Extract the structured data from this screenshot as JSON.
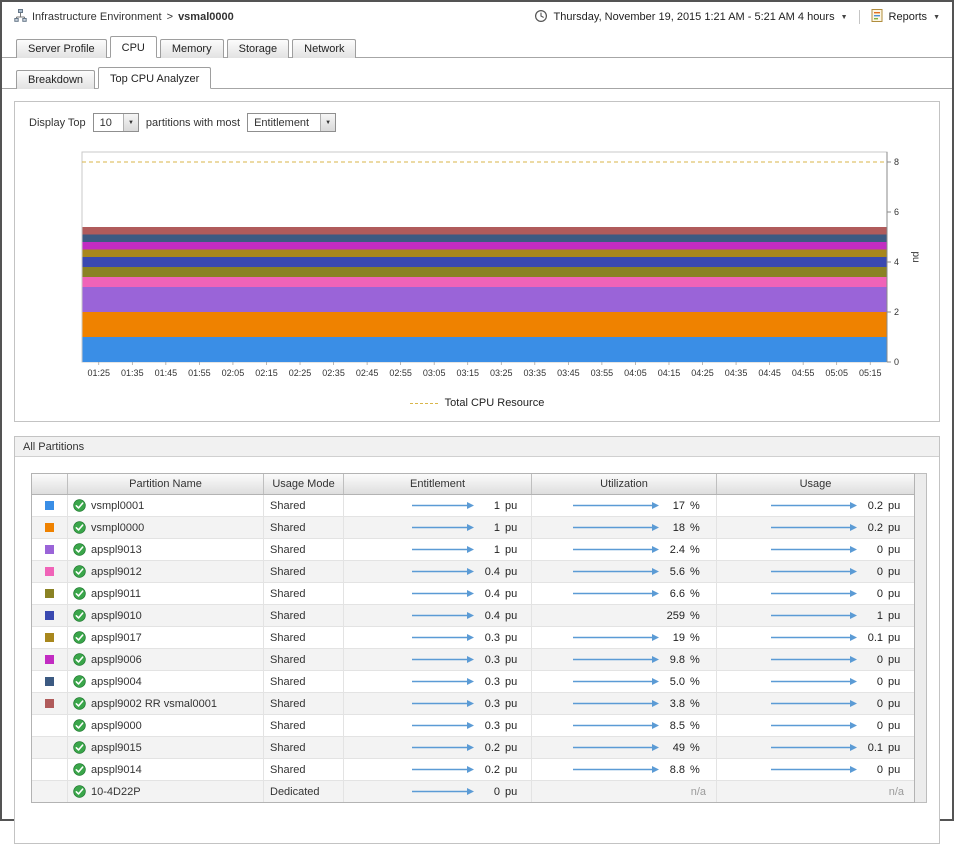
{
  "header": {
    "breadcrumb": {
      "root": "Infrastructure Environment",
      "separator": ">",
      "current": "vsmal0000"
    },
    "time_range": "Thursday, November 19, 2015 1:21 AM - 5:21 AM 4 hours",
    "reports_label": "Reports"
  },
  "glyphs": {
    "caret": "▼"
  },
  "icons": {
    "breadcrumb": "environment-icon",
    "time": "clock-icon",
    "reports": "report-document-icon",
    "dropdown": "chevron-down-icon",
    "status": "status-ok-check-icon",
    "trend": "trend-arrow-sparkline"
  },
  "tabs": {
    "items": [
      "Server Profile",
      "CPU",
      "Memory",
      "Storage",
      "Network"
    ],
    "active": "CPU"
  },
  "subtabs": {
    "items": [
      "Breakdown",
      "Top CPU Analyzer"
    ],
    "active": "Top CPU Analyzer"
  },
  "controls": {
    "display_top_label": "Display Top",
    "top_value": "10",
    "partitions_label": "partitions with most",
    "metric_value": "Entitlement"
  },
  "chart_data": {
    "type": "area",
    "stacked": true,
    "x": [
      "01:25",
      "01:35",
      "01:45",
      "01:55",
      "02:05",
      "02:15",
      "02:25",
      "02:35",
      "02:45",
      "02:55",
      "03:05",
      "03:15",
      "03:25",
      "03:35",
      "03:45",
      "03:55",
      "04:05",
      "04:15",
      "04:25",
      "04:35",
      "04:45",
      "04:55",
      "05:05",
      "05:15"
    ],
    "series": [
      {
        "name": "vsmpl0001",
        "color": "#3a8ee6",
        "value": 1
      },
      {
        "name": "vsmpl0000",
        "color": "#ef8200",
        "value": 1
      },
      {
        "name": "apspl9013",
        "color": "#9a64d8",
        "value": 1
      },
      {
        "name": "apspl9012",
        "color": "#f063b8",
        "value": 0.4
      },
      {
        "name": "apspl9011",
        "color": "#8a8224",
        "value": 0.4
      },
      {
        "name": "apspl9010",
        "color": "#3a49b0",
        "value": 0.4
      },
      {
        "name": "apspl9017",
        "color": "#a8871d",
        "value": 0.3
      },
      {
        "name": "apspl9006",
        "color": "#c22cc2",
        "value": 0.3
      },
      {
        "name": "apspl9004",
        "color": "#3c5a82",
        "value": 0.3
      },
      {
        "name": "apspl9002 RR vsmal0001",
        "color": "#b05b5b",
        "value": 0.3
      }
    ],
    "ylabel": "pu",
    "yticks": [
      0,
      2,
      4,
      6,
      8
    ],
    "ylim": [
      0,
      8.4
    ],
    "grid": false,
    "legend_position": "bottom",
    "total_line": {
      "label": "Total CPU Resource",
      "value": 8,
      "color": "#d9b64a",
      "style": "dashed"
    }
  },
  "partitions_panel": {
    "title": "All Partitions",
    "na_label": "n/a",
    "columns": [
      "",
      "Partition Name",
      "Usage Mode",
      "Entitlement",
      "Utilization",
      "Usage"
    ],
    "rows": [
      {
        "color": "#3a8ee6",
        "status": "ok",
        "name": "vsmpl0001",
        "mode": "Shared",
        "entitlement": {
          "value": "1",
          "unit": "pu"
        },
        "utilization": {
          "value": "17",
          "unit": "%"
        },
        "usage": {
          "value": "0.2",
          "unit": "pu"
        }
      },
      {
        "color": "#ef8200",
        "status": "ok",
        "name": "vsmpl0000",
        "mode": "Shared",
        "entitlement": {
          "value": "1",
          "unit": "pu"
        },
        "utilization": {
          "value": "18",
          "unit": "%"
        },
        "usage": {
          "value": "0.2",
          "unit": "pu"
        }
      },
      {
        "color": "#9a64d8",
        "status": "ok",
        "name": "apspl9013",
        "mode": "Shared",
        "entitlement": {
          "value": "1",
          "unit": "pu"
        },
        "utilization": {
          "value": "2.4",
          "unit": "%"
        },
        "usage": {
          "value": "0",
          "unit": "pu"
        }
      },
      {
        "color": "#f063b8",
        "status": "ok",
        "name": "apspl9012",
        "mode": "Shared",
        "entitlement": {
          "value": "0.4",
          "unit": "pu"
        },
        "utilization": {
          "value": "5.6",
          "unit": "%"
        },
        "usage": {
          "value": "0",
          "unit": "pu"
        }
      },
      {
        "color": "#8a8224",
        "status": "ok",
        "name": "apspl9011",
        "mode": "Shared",
        "entitlement": {
          "value": "0.4",
          "unit": "pu"
        },
        "utilization": {
          "value": "6.6",
          "unit": "%"
        },
        "usage": {
          "value": "0",
          "unit": "pu"
        }
      },
      {
        "color": "#3a49b0",
        "status": "ok",
        "name": "apspl9010",
        "mode": "Shared",
        "entitlement": {
          "value": "0.4",
          "unit": "pu"
        },
        "utilization": {
          "value": "259",
          "unit": "%",
          "spark": false
        },
        "usage": {
          "value": "1",
          "unit": "pu"
        }
      },
      {
        "color": "#a8871d",
        "status": "ok",
        "name": "apspl9017",
        "mode": "Shared",
        "entitlement": {
          "value": "0.3",
          "unit": "pu"
        },
        "utilization": {
          "value": "19",
          "unit": "%"
        },
        "usage": {
          "value": "0.1",
          "unit": "pu"
        }
      },
      {
        "color": "#c22cc2",
        "status": "ok",
        "name": "apspl9006",
        "mode": "Shared",
        "entitlement": {
          "value": "0.3",
          "unit": "pu"
        },
        "utilization": {
          "value": "9.8",
          "unit": "%"
        },
        "usage": {
          "value": "0",
          "unit": "pu"
        }
      },
      {
        "color": "#3c5a82",
        "status": "ok",
        "name": "apspl9004",
        "mode": "Shared",
        "entitlement": {
          "value": "0.3",
          "unit": "pu"
        },
        "utilization": {
          "value": "5.0",
          "unit": "%"
        },
        "usage": {
          "value": "0",
          "unit": "pu"
        }
      },
      {
        "color": "#b05b5b",
        "status": "ok",
        "name": "apspl9002 RR vsmal0001",
        "mode": "Shared",
        "entitlement": {
          "value": "0.3",
          "unit": "pu"
        },
        "utilization": {
          "value": "3.8",
          "unit": "%"
        },
        "usage": {
          "value": "0",
          "unit": "pu"
        }
      },
      {
        "color": null,
        "status": "ok",
        "name": "apspl9000",
        "mode": "Shared",
        "entitlement": {
          "value": "0.3",
          "unit": "pu"
        },
        "utilization": {
          "value": "8.5",
          "unit": "%"
        },
        "usage": {
          "value": "0",
          "unit": "pu"
        }
      },
      {
        "color": null,
        "status": "ok",
        "name": "apspl9015",
        "mode": "Shared",
        "entitlement": {
          "value": "0.2",
          "unit": "pu"
        },
        "utilization": {
          "value": "49",
          "unit": "%"
        },
        "usage": {
          "value": "0.1",
          "unit": "pu"
        }
      },
      {
        "color": null,
        "status": "ok",
        "name": "apspl9014",
        "mode": "Shared",
        "entitlement": {
          "value": "0.2",
          "unit": "pu"
        },
        "utilization": {
          "value": "8.8",
          "unit": "%"
        },
        "usage": {
          "value": "0",
          "unit": "pu"
        }
      },
      {
        "color": null,
        "status": "ok",
        "name": "10-4D22P",
        "mode": "Dedicated",
        "entitlement": {
          "value": "0",
          "unit": "pu"
        },
        "utilization": {
          "na": true
        },
        "usage": {
          "na": true
        }
      }
    ]
  }
}
